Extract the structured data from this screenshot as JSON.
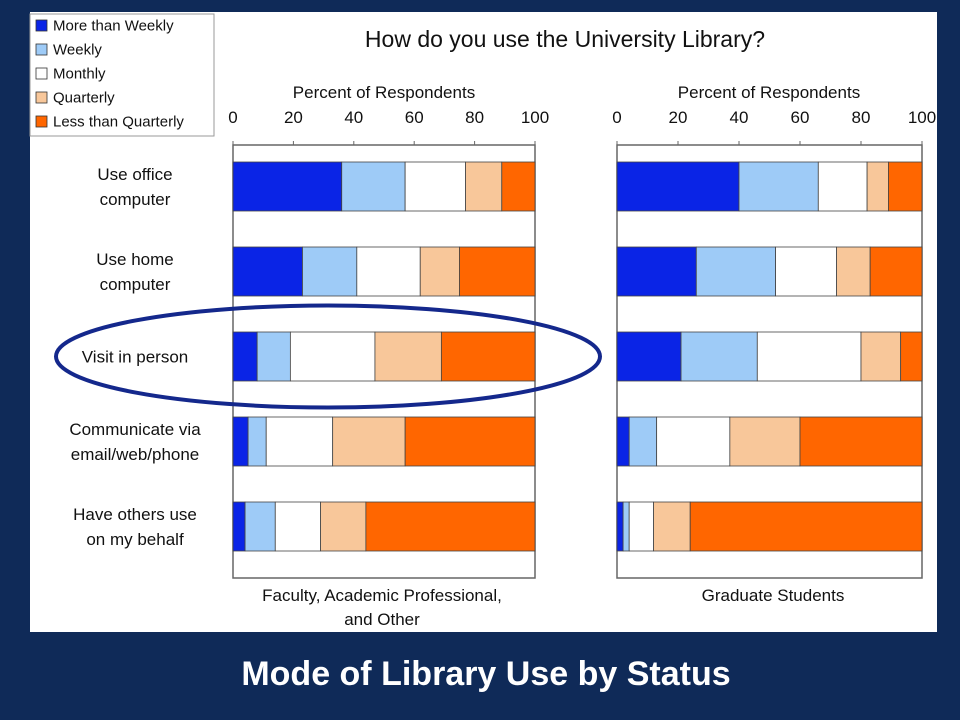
{
  "slide_title": "Mode of Library Use by Status",
  "colors": {
    "background": "#0f2a58",
    "ellipse": "#14288c"
  },
  "chart_data": {
    "type": "bar",
    "stacked": true,
    "orientation": "horizontal",
    "title": "How do you use the University Library?",
    "legend_position": "top-left",
    "legend": [
      {
        "label": "More than Weekly",
        "color": "#0a24e6"
      },
      {
        "label": "Weekly",
        "color": "#9ecbf7"
      },
      {
        "label": "Monthly",
        "color": "#ffffff"
      },
      {
        "label": "Quarterly",
        "color": "#f8c79a"
      },
      {
        "label": "Less than Quarterly",
        "color": "#ff6600"
      }
    ],
    "categories": [
      "Use office computer",
      "Use home computer",
      "Visit in person",
      "Communicate via email/web/phone",
      "Have others use on my behalf"
    ],
    "category_label_lines": [
      [
        "Use office",
        "computer"
      ],
      [
        "Use home",
        "computer"
      ],
      [
        "Visit in person"
      ],
      [
        "Communicate via",
        "email/web/phone"
      ],
      [
        "Have others use",
        "on my behalf"
      ]
    ],
    "highlighted_category": "Visit in person",
    "panels": [
      {
        "caption_lines": [
          "Faculty, Academic Professional,",
          "and Other"
        ],
        "xlabel": "Percent of Respondents",
        "xlim": [
          0,
          100
        ],
        "xticks": [
          "0",
          "20",
          "40",
          "60",
          "80",
          "100"
        ],
        "series": [
          {
            "name": "More than Weekly",
            "values": [
              36,
              23,
              8,
              5,
              4
            ]
          },
          {
            "name": "Weekly",
            "values": [
              21,
              18,
              11,
              6,
              10
            ]
          },
          {
            "name": "Monthly",
            "values": [
              20,
              21,
              28,
              22,
              15
            ]
          },
          {
            "name": "Quarterly",
            "values": [
              12,
              13,
              22,
              24,
              15
            ]
          },
          {
            "name": "Less than Quarterly",
            "values": [
              11,
              25,
              31,
              43,
              56
            ]
          }
        ]
      },
      {
        "caption_lines": [
          "Graduate Students"
        ],
        "xlabel": "Percent of Respondents",
        "xlim": [
          0,
          100
        ],
        "xticks": [
          "0",
          "20",
          "40",
          "60",
          "80",
          "100"
        ],
        "series": [
          {
            "name": "More than Weekly",
            "values": [
              40,
              26,
              21,
              4,
              2
            ]
          },
          {
            "name": "Weekly",
            "values": [
              26,
              26,
              25,
              9,
              2
            ]
          },
          {
            "name": "Monthly",
            "values": [
              16,
              20,
              34,
              24,
              8
            ]
          },
          {
            "name": "Quarterly",
            "values": [
              7,
              11,
              13,
              23,
              12
            ]
          },
          {
            "name": "Less than Quarterly",
            "values": [
              11,
              17,
              7,
              40,
              76
            ]
          }
        ]
      }
    ]
  }
}
